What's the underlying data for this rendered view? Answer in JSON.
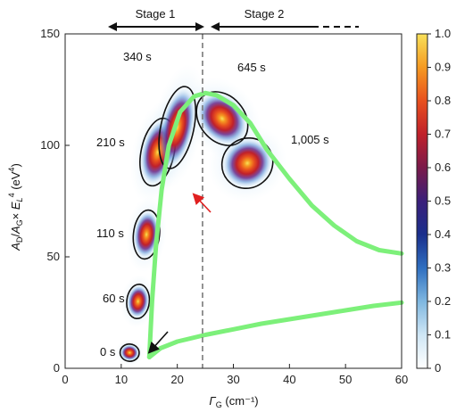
{
  "chart_data": {
    "type": "scatter",
    "xlim": [
      0,
      60
    ],
    "ylim": [
      0,
      150
    ],
    "x_ticks": [
      "0",
      "10",
      "20",
      "30",
      "40",
      "50",
      "60"
    ],
    "y_ticks": [
      "0",
      "50",
      "100",
      "150"
    ],
    "colorbar": {
      "range": [
        0,
        1.0
      ],
      "ticks": [
        "0",
        "0.1",
        "0.2",
        "0.3",
        "0.4",
        "0.5",
        "0.6",
        "0.7",
        "0.8",
        "0.9",
        "1.0"
      ],
      "colors": [
        "#ffffff",
        "#cfe6f5",
        "#7fb7e0",
        "#2f6fc0",
        "#1a2f8c",
        "#3a1f7a",
        "#7a1a4a",
        "#c0202a",
        "#e8501e",
        "#f59a22",
        "#f8e15a"
      ]
    },
    "clusters": [
      {
        "label": "0 s",
        "x": 11.5,
        "y": 7,
        "sx": 1.1,
        "sy": 3.5
      },
      {
        "label": "60 s",
        "x": 13,
        "y": 30,
        "sx": 1.3,
        "sy": 7
      },
      {
        "label": "110 s",
        "x": 14.5,
        "y": 60,
        "sx": 1.5,
        "sy": 10
      },
      {
        "label": "210 s",
        "x": 16.5,
        "y": 97,
        "sx": 1.9,
        "sy": 14
      },
      {
        "label": "340 s",
        "x": 20,
        "y": 108,
        "sx": 1.9,
        "sy": 17
      },
      {
        "label": "645 s",
        "x": 28,
        "y": 112,
        "sx": 2.6,
        "sy": 12
      },
      {
        "label": "1,005 s",
        "x": 32.5,
        "y": 92,
        "sx": 3.0,
        "sy": 10
      }
    ],
    "threshold_x": 24.5,
    "stages": [
      {
        "label": "Stage 1"
      },
      {
        "label": "Stage 2"
      }
    ],
    "green_curve_upper": [
      [
        15,
        5
      ],
      [
        15.5,
        30
      ],
      [
        16.2,
        55
      ],
      [
        17.2,
        80
      ],
      [
        18.5,
        100
      ],
      [
        20.5,
        115
      ],
      [
        23,
        122
      ],
      [
        25,
        123.5
      ],
      [
        27,
        122.5
      ],
      [
        30,
        118
      ],
      [
        33,
        110
      ],
      [
        36,
        98
      ],
      [
        40,
        85
      ],
      [
        44,
        73
      ],
      [
        48,
        64
      ],
      [
        52,
        57
      ],
      [
        56,
        53
      ],
      [
        60,
        51.5
      ]
    ],
    "green_curve_lower": [
      [
        15,
        5
      ],
      [
        17,
        9
      ],
      [
        20,
        12
      ],
      [
        25,
        15
      ],
      [
        30,
        17.5
      ],
      [
        35,
        20
      ],
      [
        40,
        22
      ],
      [
        45,
        24
      ],
      [
        50,
        26
      ],
      [
        55,
        28
      ],
      [
        60,
        29.5
      ]
    ],
    "green_color": "#7df07a",
    "grey_line_color": "#7a7a7a",
    "axis_labels": {
      "x_main": "Γ",
      "x_sub": "G",
      "x_unit": " (cm⁻¹)",
      "y": "A_D/A_G × E_L^4 (eV^4)"
    }
  }
}
